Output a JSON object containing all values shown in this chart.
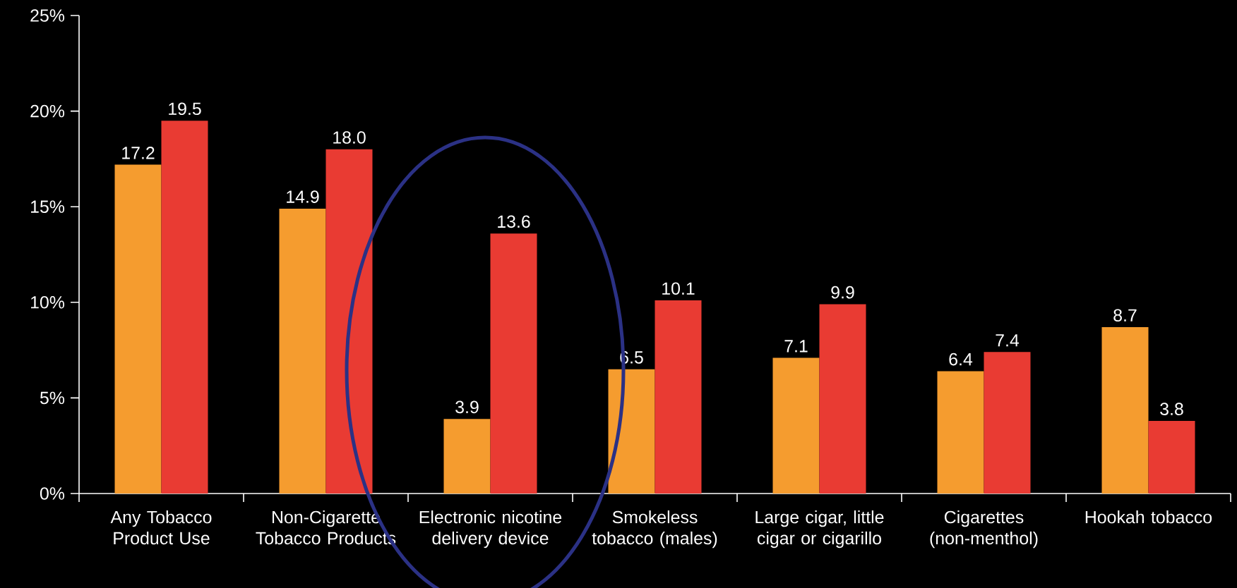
{
  "chart_data": {
    "type": "bar",
    "categories": [
      "Any Tobacco Product Use",
      "Non-Cigarette Tobacco Products",
      "Electronic nicotine delivery device",
      "Smokeless tobacco (males)",
      "Large cigar, little cigar or cigarillo",
      "Cigarettes (non-menthol)",
      "Hookah tobacco"
    ],
    "series": [
      {
        "color": "#f59c2f",
        "values": [
          17.2,
          14.9,
          3.9,
          6.5,
          7.1,
          6.4,
          8.7
        ],
        "value_labels": [
          "17.2",
          "14.9",
          "3.9",
          "6.5",
          "7.1",
          "6.4",
          "8.7"
        ]
      },
      {
        "color": "#e93b33",
        "values": [
          19.5,
          18.0,
          13.6,
          10.1,
          9.9,
          7.4,
          3.8
        ],
        "value_labels": [
          "19.5",
          "18.0",
          "13.6",
          "10.1",
          "9.9",
          "7.4",
          "3.8"
        ]
      }
    ],
    "ylim": [
      0,
      25
    ],
    "yticks": [
      {
        "value": 0,
        "label": "0%"
      },
      {
        "value": 5,
        "label": "5%"
      },
      {
        "value": 10,
        "label": "10%"
      },
      {
        "value": 15,
        "label": "15%"
      },
      {
        "value": 20,
        "label": "20%"
      },
      {
        "value": 25,
        "label": "25%"
      }
    ],
    "grid": false
  }
}
